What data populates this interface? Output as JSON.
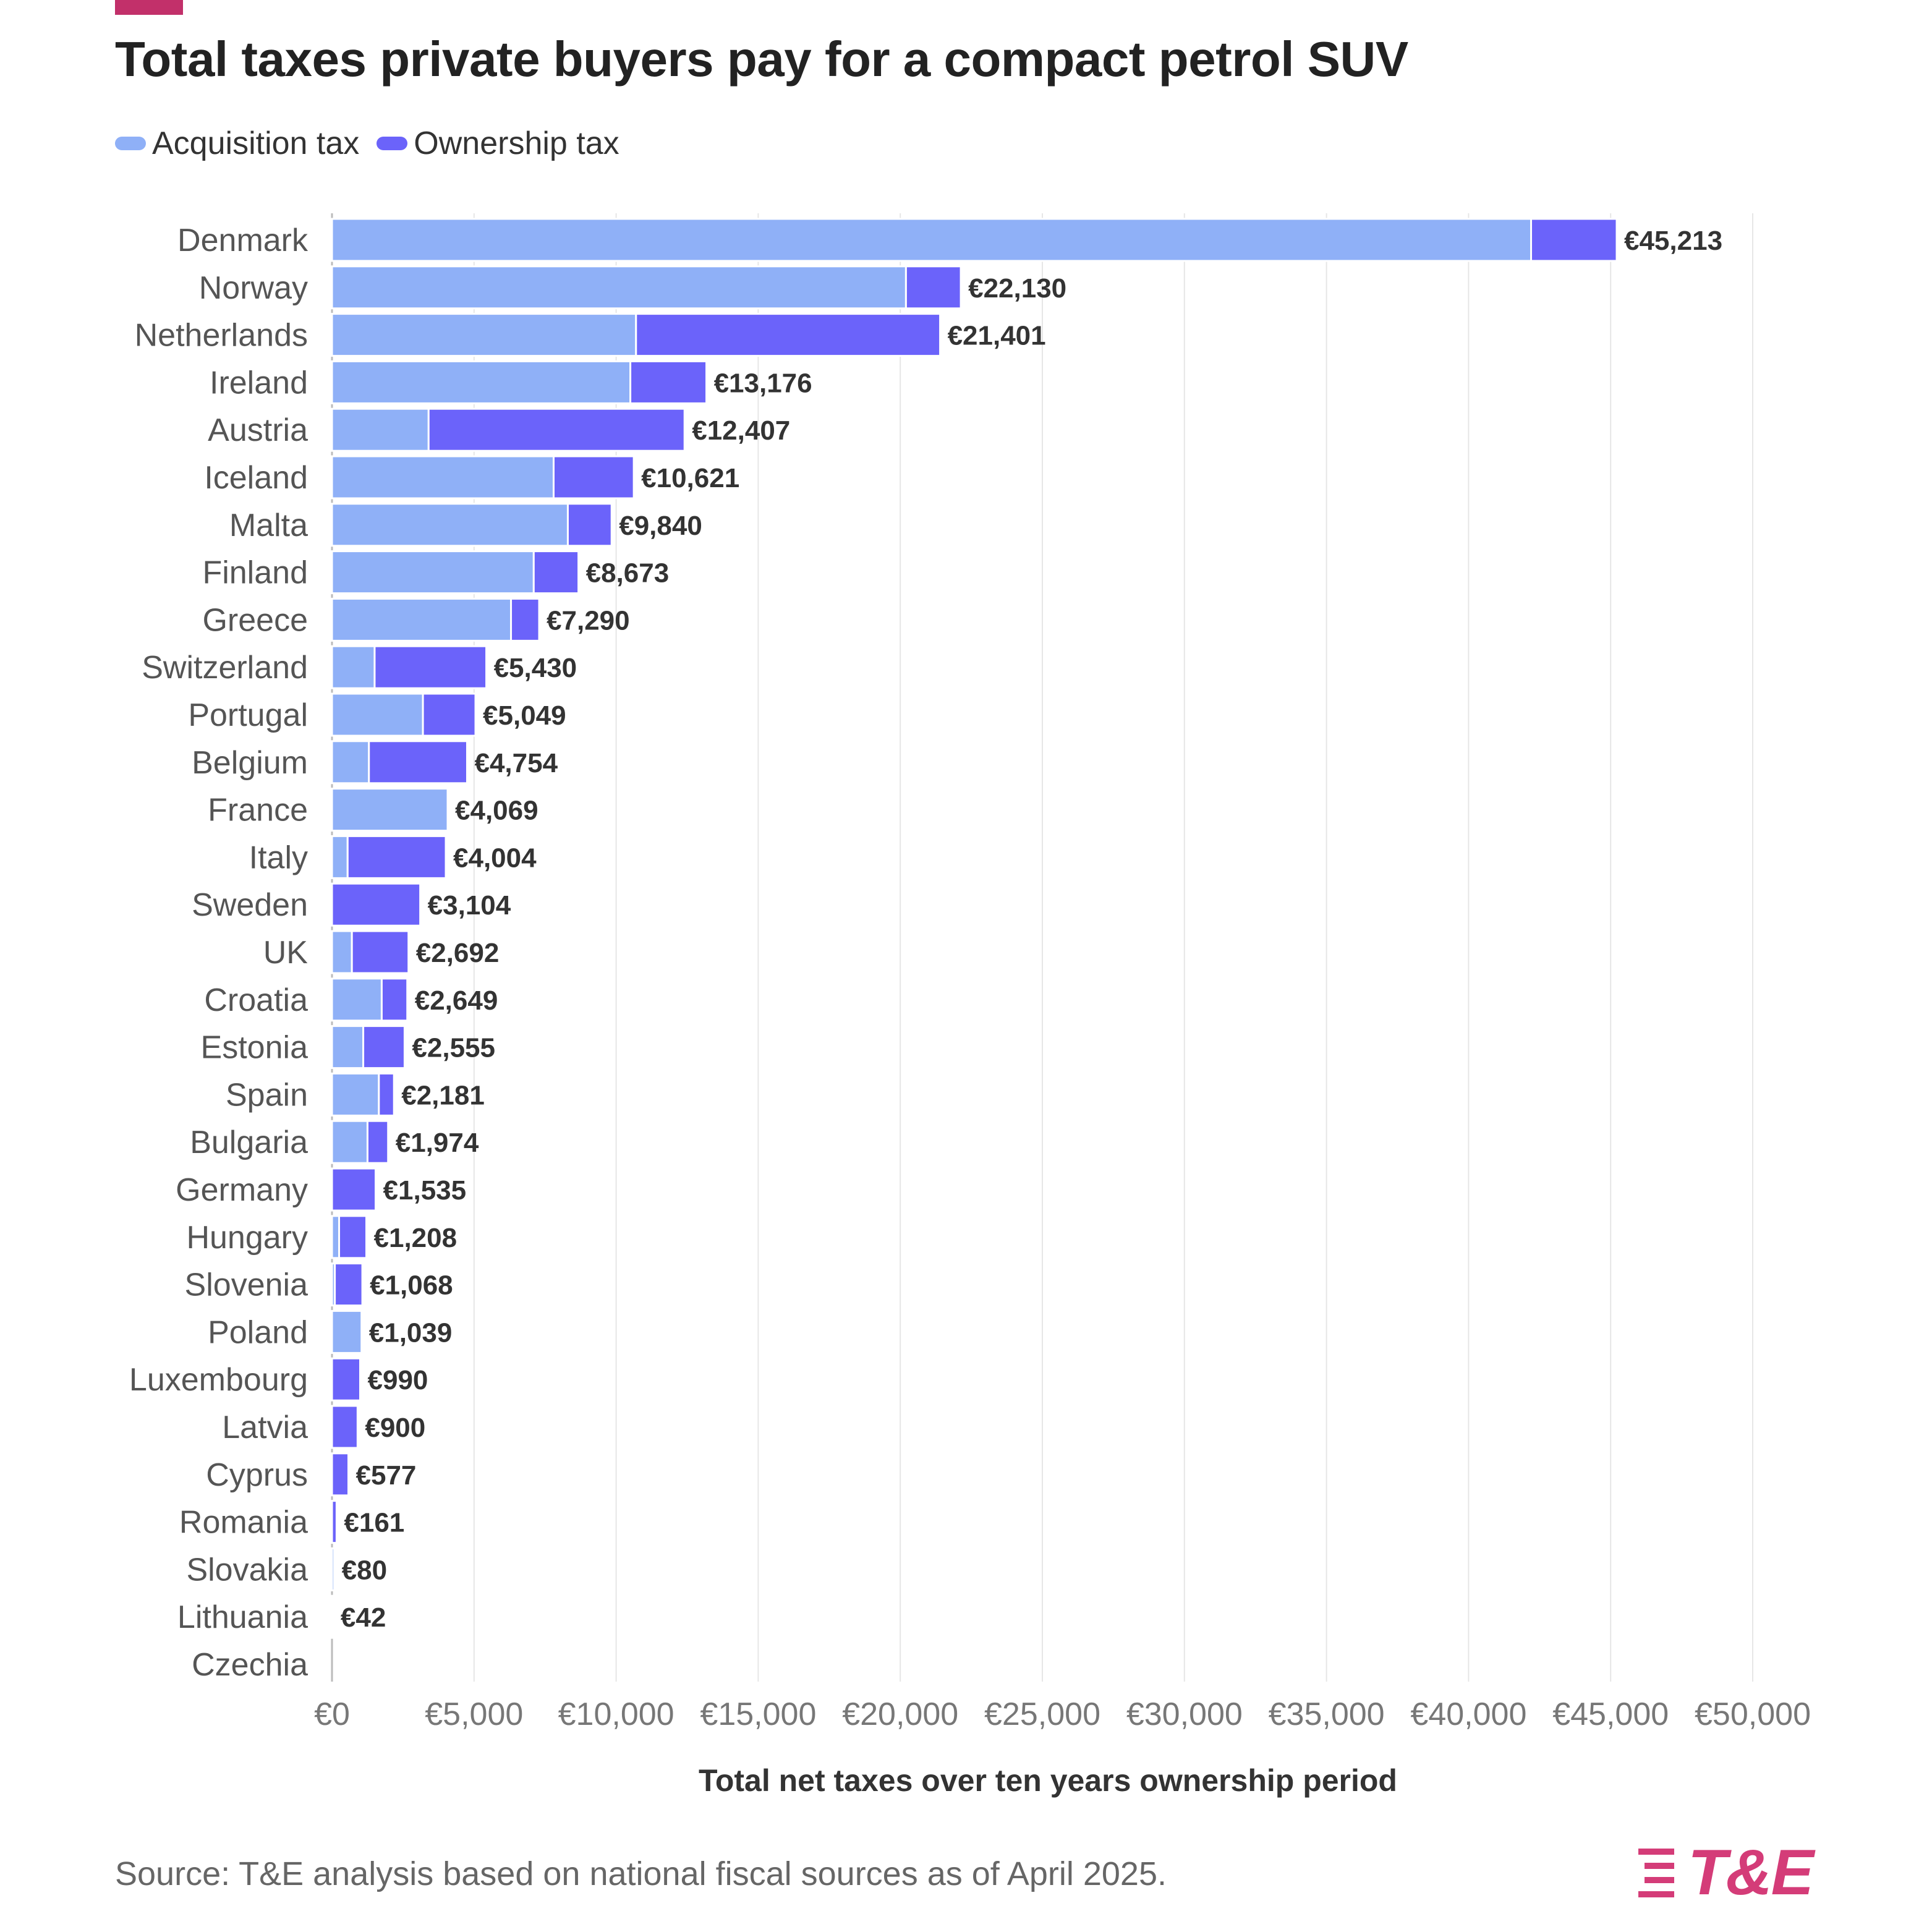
{
  "title": "Total taxes private buyers pay for a compact petrol SUV",
  "source": "Source: T&E analysis based on national fiscal sources as of April 2025.",
  "logo": {
    "text": "T&E",
    "icon": "te-stripes-icon",
    "color": "#d43c78"
  },
  "accent_color": "#c2306a",
  "chart_data": {
    "type": "bar",
    "orientation": "horizontal",
    "stacked": true,
    "title": "Total taxes private buyers pay for a compact petrol SUV",
    "xlabel": "Total net taxes over ten years ownership period",
    "ylabel": "",
    "xlim": [
      0,
      50000
    ],
    "x_ticks": [
      0,
      5000,
      10000,
      15000,
      20000,
      25000,
      30000,
      35000,
      40000,
      45000,
      50000
    ],
    "x_tick_labels": [
      "€0",
      "€5,000",
      "€10,000",
      "€15,000",
      "€20,000",
      "€25,000",
      "€30,000",
      "€35,000",
      "€40,000",
      "€45,000",
      "€50,000"
    ],
    "grid": "vertical",
    "legend": "top-left",
    "categories": [
      "Denmark",
      "Norway",
      "Netherlands",
      "Ireland",
      "Austria",
      "Iceland",
      "Malta",
      "Finland",
      "Greece",
      "Switzerland",
      "Portugal",
      "Belgium",
      "France",
      "Italy",
      "Sweden",
      "UK",
      "Croatia",
      "Estonia",
      "Spain",
      "Bulgaria",
      "Germany",
      "Hungary",
      "Slovenia",
      "Poland",
      "Luxembourg",
      "Latvia",
      "Cyprus",
      "Romania",
      "Slovakia",
      "Lithuania",
      "Czechia"
    ],
    "series": [
      {
        "name": "Acquisition tax",
        "color": "#8fb0f7",
        "values": [
          42200,
          20200,
          10700,
          10500,
          3400,
          7800,
          8300,
          7100,
          6300,
          1500,
          3200,
          1300,
          4069,
          550,
          0,
          700,
          1750,
          1100,
          1650,
          1250,
          0,
          250,
          100,
          1039,
          0,
          0,
          0,
          0,
          80,
          42,
          0
        ]
      },
      {
        "name": "Ownership tax",
        "color": "#6b63fa",
        "values": [
          3013,
          1930,
          10701,
          2676,
          9007,
          2821,
          1540,
          1573,
          990,
          3930,
          1849,
          3454,
          0,
          3454,
          3104,
          1992,
          899,
          1455,
          531,
          724,
          1535,
          958,
          968,
          0,
          990,
          900,
          577,
          161,
          0,
          0,
          0
        ]
      }
    ],
    "totals": [
      45213,
      22130,
      21401,
      13176,
      12407,
      10621,
      9840,
      8673,
      7290,
      5430,
      5049,
      4754,
      4069,
      4004,
      3104,
      2692,
      2649,
      2555,
      2181,
      1974,
      1535,
      1208,
      1068,
      1039,
      990,
      900,
      577,
      161,
      80,
      42,
      null
    ],
    "total_labels": [
      "€45,213",
      "€22,130",
      "€21,401",
      "€13,176",
      "€12,407",
      "€10,621",
      "€9,840",
      "€8,673",
      "€7,290",
      "€5,430",
      "€5,049",
      "€4,754",
      "€4,069",
      "€4,004",
      "€3,104",
      "€2,692",
      "€2,649",
      "€2,555",
      "€2,181",
      "€1,974",
      "€1,535",
      "€1,208",
      "€1,068",
      "€1,039",
      "€990",
      "€900",
      "€577",
      "€161",
      "€80",
      "€42",
      ""
    ]
  }
}
